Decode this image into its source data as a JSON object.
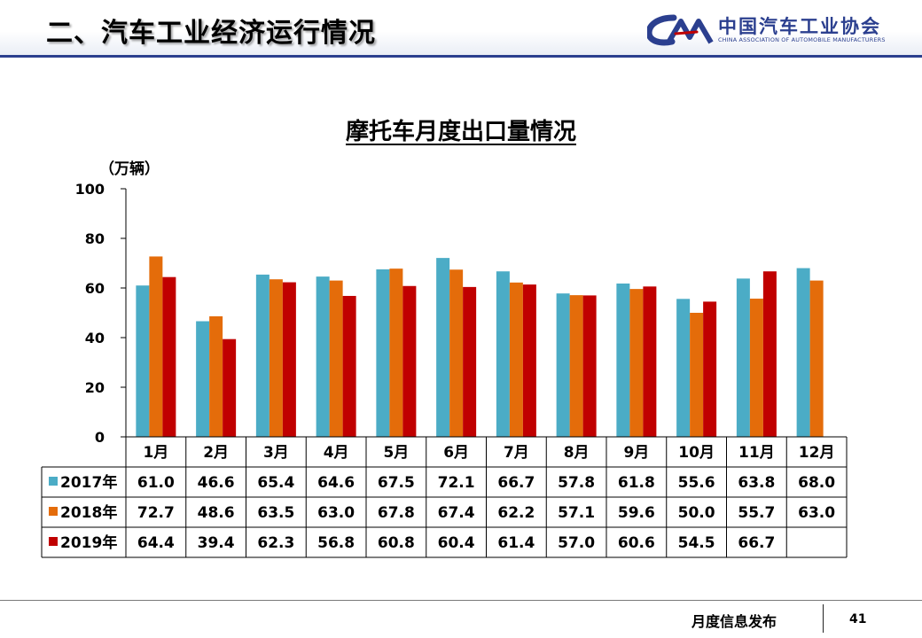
{
  "slide": {
    "title": "二、汽车工业经济运行情况",
    "page_number": "41",
    "footer_text": "月度信息发布"
  },
  "logo": {
    "cn_name": "中国汽车工业协会",
    "en_name": "CHINA ASSOCIATION OF AUTOMOBILE MANUFACTURERS",
    "color": "#2b3f8f"
  },
  "chart_data": {
    "type": "bar",
    "title": "摩托车月度出口量情况",
    "ylabel": "（万辆）",
    "ylim": [
      0,
      100
    ],
    "yticks": [
      0,
      20,
      40,
      60,
      80,
      100
    ],
    "categories": [
      "1月",
      "2月",
      "3月",
      "4月",
      "5月",
      "6月",
      "7月",
      "8月",
      "9月",
      "10月",
      "11月",
      "12月"
    ],
    "series": [
      {
        "name": "2017年",
        "color": "#4bacc6",
        "values": [
          61.0,
          46.6,
          65.4,
          64.6,
          67.5,
          72.1,
          66.7,
          57.8,
          61.8,
          55.6,
          63.8,
          68.0
        ]
      },
      {
        "name": "2018年",
        "color": "#e46c0a",
        "values": [
          72.7,
          48.6,
          63.5,
          63.0,
          67.8,
          67.4,
          62.2,
          57.1,
          59.6,
          50.0,
          55.7,
          63.0
        ]
      },
      {
        "name": "2019年",
        "color": "#c00000",
        "values": [
          64.4,
          39.4,
          62.3,
          56.8,
          60.8,
          60.4,
          61.4,
          57.0,
          60.6,
          54.5,
          66.7,
          null
        ]
      }
    ],
    "grid": false,
    "legend": "data-table"
  }
}
